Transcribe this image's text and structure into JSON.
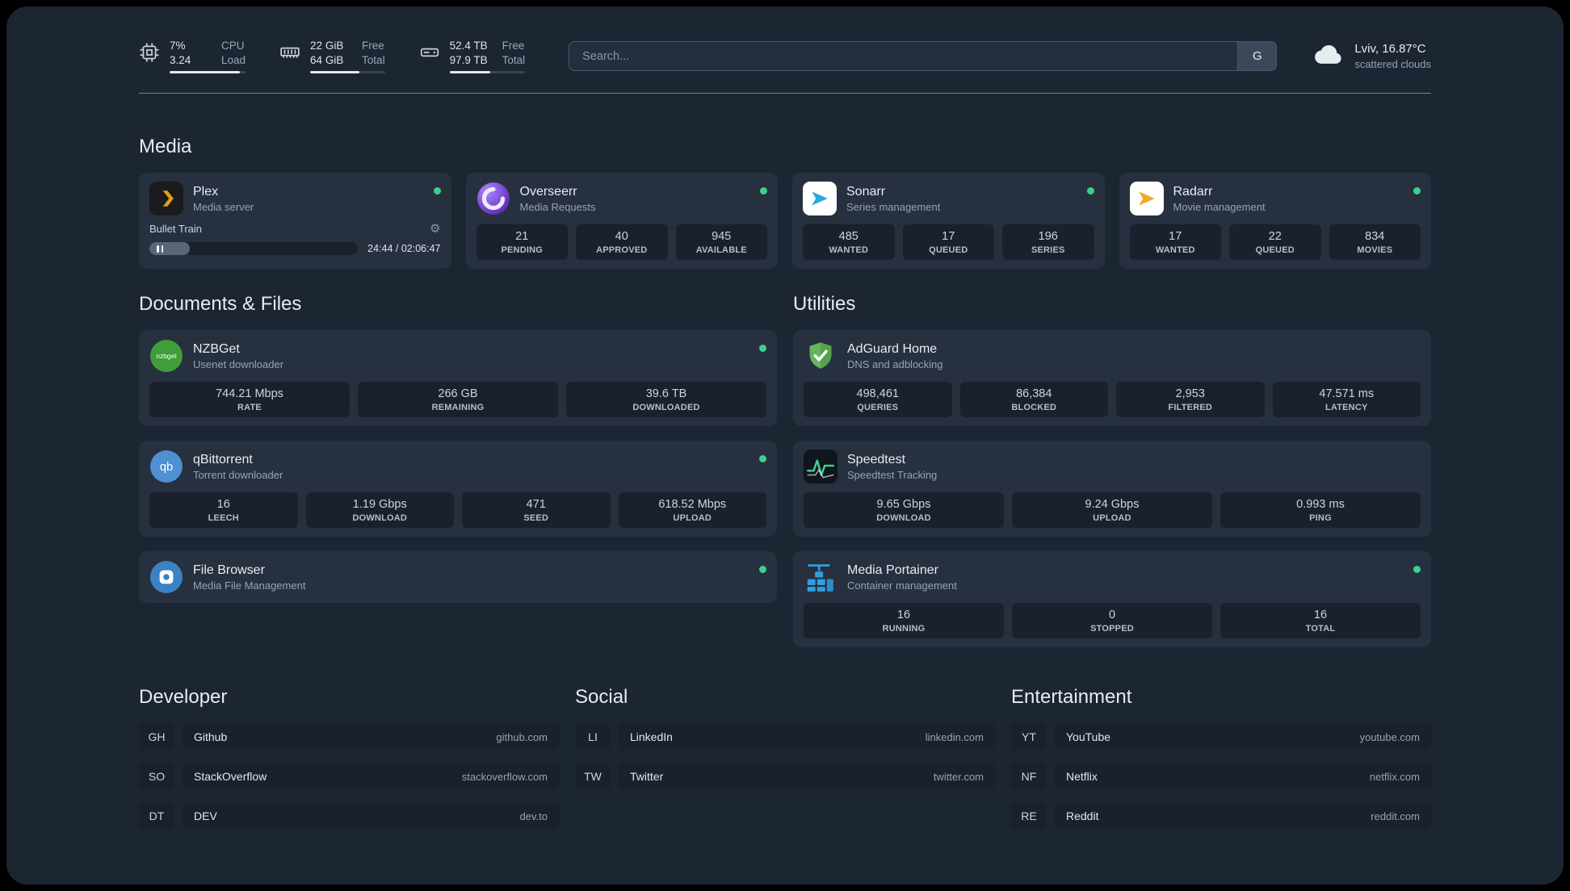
{
  "colors": {
    "page-bg": "#1c2532",
    "card-bg": "#27303e",
    "stat-bg": "#1a212c",
    "status-green": "#3ecf8e",
    "bar-fill": "#e5e7eb"
  },
  "topbar": {
    "cpu": {
      "percent": "7%",
      "load": "3.24",
      "label_top": "CPU",
      "label_bottom": "Load",
      "bar": 92
    },
    "memory": {
      "free": "22 GiB",
      "total": "64 GiB",
      "label_top": "Free",
      "label_bottom": "Total",
      "bar": 66
    },
    "disk": {
      "free": "52.4 TB",
      "total": "97.9 TB",
      "label_top": "Free",
      "label_bottom": "Total",
      "bar": 54
    },
    "search": {
      "placeholder": "Search...",
      "provider": "G"
    },
    "weather": {
      "location": "Lviv, 16.87°C",
      "condition": "scattered clouds"
    }
  },
  "media": {
    "title": "Media",
    "cards": [
      {
        "name": "Plex",
        "subtitle": "Media server",
        "player": {
          "title": "Bullet Train",
          "time": "24:44 / 02:06:47",
          "progress": 19.5
        }
      },
      {
        "name": "Overseerr",
        "subtitle": "Media Requests",
        "stats": [
          {
            "value": "21",
            "label": "PENDING"
          },
          {
            "value": "40",
            "label": "APPROVED"
          },
          {
            "value": "945",
            "label": "AVAILABLE"
          }
        ]
      },
      {
        "name": "Sonarr",
        "subtitle": "Series management",
        "stats": [
          {
            "value": "485",
            "label": "WANTED"
          },
          {
            "value": "17",
            "label": "QUEUED"
          },
          {
            "value": "196",
            "label": "SERIES"
          }
        ]
      },
      {
        "name": "Radarr",
        "subtitle": "Movie management",
        "stats": [
          {
            "value": "17",
            "label": "WANTED"
          },
          {
            "value": "22",
            "label": "QUEUED"
          },
          {
            "value": "834",
            "label": "MOVIES"
          }
        ]
      }
    ]
  },
  "documents": {
    "title": "Documents & Files",
    "cards": [
      {
        "name": "NZBGet",
        "subtitle": "Usenet downloader",
        "stats": [
          {
            "value": "744.21 Mbps",
            "label": "RATE"
          },
          {
            "value": "266 GB",
            "label": "REMAINING"
          },
          {
            "value": "39.6 TB",
            "label": "DOWNLOADED"
          }
        ]
      },
      {
        "name": "qBittorrent",
        "subtitle": "Torrent downloader",
        "stats": [
          {
            "value": "16",
            "label": "LEECH"
          },
          {
            "value": "1.19 Gbps",
            "label": "DOWNLOAD"
          },
          {
            "value": "471",
            "label": "SEED"
          },
          {
            "value": "618.52 Mbps",
            "label": "UPLOAD"
          }
        ]
      },
      {
        "name": "File Browser",
        "subtitle": "Media File Management",
        "stats": []
      }
    ]
  },
  "utilities": {
    "title": "Utilities",
    "cards": [
      {
        "name": "AdGuard Home",
        "subtitle": "DNS and adblocking",
        "stats": [
          {
            "value": "498,461",
            "label": "QUERIES"
          },
          {
            "value": "86,384",
            "label": "BLOCKED"
          },
          {
            "value": "2,953",
            "label": "FILTERED"
          },
          {
            "value": "47.571 ms",
            "label": "LATENCY"
          }
        ]
      },
      {
        "name": "Speedtest",
        "subtitle": "Speedtest Tracking",
        "stats": [
          {
            "value": "9.65 Gbps",
            "label": "DOWNLOAD"
          },
          {
            "value": "9.24 Gbps",
            "label": "UPLOAD"
          },
          {
            "value": "0.993 ms",
            "label": "PING"
          }
        ]
      },
      {
        "name": "Media Portainer",
        "subtitle": "Container management",
        "stats": [
          {
            "value": "16",
            "label": "RUNNING"
          },
          {
            "value": "0",
            "label": "STOPPED"
          },
          {
            "value": "16",
            "label": "TOTAL"
          }
        ]
      }
    ]
  },
  "bookmarks": {
    "developer": {
      "title": "Developer",
      "items": [
        {
          "abbr": "GH",
          "name": "Github",
          "domain": "github.com"
        },
        {
          "abbr": "SO",
          "name": "StackOverflow",
          "domain": "stackoverflow.com"
        },
        {
          "abbr": "DT",
          "name": "DEV",
          "domain": "dev.to"
        }
      ]
    },
    "social": {
      "title": "Social",
      "items": [
        {
          "abbr": "LI",
          "name": "LinkedIn",
          "domain": "linkedin.com"
        },
        {
          "abbr": "TW",
          "name": "Twitter",
          "domain": "twitter.com"
        }
      ]
    },
    "entertainment": {
      "title": "Entertainment",
      "items": [
        {
          "abbr": "YT",
          "name": "YouTube",
          "domain": "youtube.com"
        },
        {
          "abbr": "NF",
          "name": "Netflix",
          "domain": "netflix.com"
        },
        {
          "abbr": "RE",
          "name": "Reddit",
          "domain": "reddit.com"
        }
      ]
    }
  }
}
